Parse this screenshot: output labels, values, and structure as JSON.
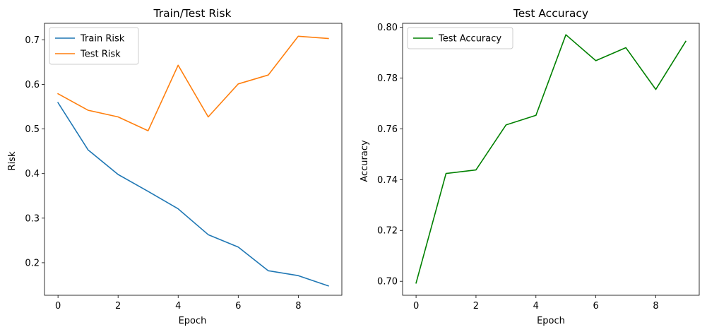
{
  "chart_data": [
    {
      "type": "line",
      "title": "Train/Test Risk",
      "xlabel": "Epoch",
      "ylabel": "Risk",
      "x": [
        0,
        1,
        2,
        3,
        4,
        5,
        6,
        7,
        8,
        9
      ],
      "xlim": [
        -0.45,
        9.45
      ],
      "ylim": [
        0.127,
        0.737
      ],
      "xticks": [
        0,
        2,
        4,
        6,
        8
      ],
      "yticks": [
        0.2,
        0.3,
        0.4,
        0.5,
        0.6,
        0.7
      ],
      "ytick_decimals": 1,
      "legend": "upper-left",
      "grid": false,
      "series": [
        {
          "name": "Train Risk",
          "color": "#1f77b4",
          "values": [
            0.559,
            0.453,
            0.398,
            0.36,
            0.321,
            0.263,
            0.235,
            0.182,
            0.171,
            0.148
          ]
        },
        {
          "name": "Test Risk",
          "color": "#ff7f0e",
          "values": [
            0.579,
            0.542,
            0.527,
            0.496,
            0.643,
            0.527,
            0.601,
            0.621,
            0.708,
            0.703
          ]
        }
      ]
    },
    {
      "type": "line",
      "title": "Test Accuracy",
      "xlabel": "Epoch",
      "ylabel": "Accuracy",
      "x": [
        0,
        1,
        2,
        3,
        4,
        5,
        6,
        7,
        8,
        9
      ],
      "xlim": [
        -0.45,
        9.45
      ],
      "ylim": [
        0.6945,
        0.8015
      ],
      "xticks": [
        0,
        2,
        4,
        6,
        8
      ],
      "yticks": [
        0.7,
        0.72,
        0.74,
        0.76,
        0.78,
        0.8
      ],
      "ytick_decimals": 2,
      "legend": "upper-left",
      "grid": false,
      "series": [
        {
          "name": "Test Accuracy",
          "color": "#008000",
          "values": [
            0.6993,
            0.7424,
            0.7438,
            0.7615,
            0.7653,
            0.797,
            0.7868,
            0.7919,
            0.7755,
            0.7944
          ]
        }
      ]
    }
  ]
}
